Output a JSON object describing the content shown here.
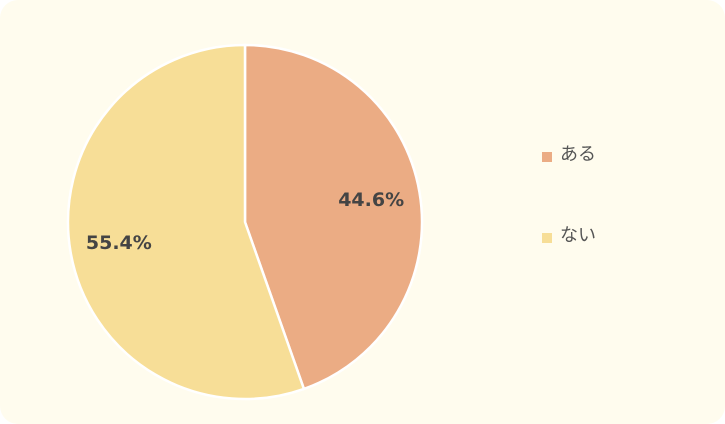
{
  "chart_data": {
    "type": "pie",
    "categories": [
      "ある",
      "ない"
    ],
    "values": [
      44.6,
      55.4
    ],
    "value_labels": [
      "44.6%",
      "55.4%"
    ],
    "colors": [
      "#ebac84",
      "#f7de97"
    ],
    "legend": "right"
  }
}
